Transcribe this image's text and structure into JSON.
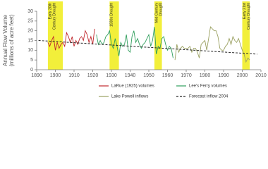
{
  "chart_data": {
    "type": "line",
    "y_label": [
      "Annual Flow Volume",
      "(millions of acre feet)"
    ],
    "xlim": [
      1890,
      2010
    ],
    "xticks": [
      1890,
      1900,
      1910,
      1920,
      1930,
      1940,
      1950,
      1960,
      1970,
      1980,
      1990,
      2000,
      2010
    ],
    "ylim": [
      0,
      30
    ],
    "yticks": [
      0,
      5,
      10,
      15,
      20,
      25,
      30
    ],
    "droughts": [
      {
        "start": 1896,
        "end": 1904,
        "label": [
          "Early 20th",
          "Century Drought"
        ]
      },
      {
        "start": 1929,
        "end": 1934,
        "label": [
          "1930s Drought"
        ]
      },
      {
        "start": 1953,
        "end": 1957,
        "label": [
          "Mid-Century",
          "Drought"
        ]
      },
      {
        "start": 2000,
        "end": 2004,
        "label": [
          "Early 21st",
          "Century Drought"
        ]
      }
    ],
    "drought_color": "#f2ef3a",
    "series": [
      {
        "name": "LaRue (1925) volumes",
        "color": "#c0282d",
        "x": [
          1896,
          1897,
          1898,
          1899,
          1900,
          1901,
          1902,
          1903,
          1904,
          1905,
          1906,
          1907,
          1908,
          1909,
          1910,
          1911,
          1912,
          1913,
          1914,
          1915,
          1916,
          1917,
          1918,
          1919,
          1920,
          1921
        ],
        "values": [
          14,
          12,
          15,
          17,
          10,
          14,
          11,
          13,
          14,
          12,
          19,
          17,
          14,
          17,
          12,
          15,
          13,
          16,
          17,
          15,
          20,
          18,
          14,
          17,
          13,
          21
        ]
      },
      {
        "name": "Lee's Ferry volumes",
        "color": "#2e9e5b",
        "x": [
          1922,
          1923,
          1924,
          1925,
          1926,
          1927,
          1928,
          1929,
          1930,
          1931,
          1932,
          1933,
          1934,
          1935,
          1936,
          1937,
          1938,
          1939,
          1940,
          1941,
          1942,
          1943,
          1944,
          1945,
          1946,
          1947,
          1948,
          1949,
          1950,
          1951,
          1952,
          1953,
          1954,
          1955,
          1956,
          1957,
          1958,
          1959,
          1960,
          1961,
          1962,
          1963
        ],
        "values": [
          18,
          13,
          15,
          13,
          14,
          17,
          18,
          20,
          13,
          11,
          16,
          12,
          7,
          14,
          12,
          13,
          18,
          10,
          9,
          17,
          20,
          14,
          16,
          13,
          11,
          13,
          14,
          16,
          18,
          12,
          15,
          22,
          8,
          12,
          11,
          16,
          17,
          13,
          10,
          12,
          11,
          6
        ]
      },
      {
        "name": "Lake Powell inflows",
        "color": "#9aa060",
        "x": [
          1964,
          1965,
          1966,
          1967,
          1968,
          1969,
          1970,
          1971,
          1972,
          1973,
          1974,
          1975,
          1976,
          1977,
          1978,
          1979,
          1980,
          1981,
          1982,
          1983,
          1984,
          1985,
          1986,
          1987,
          1988,
          1989,
          1990,
          1991,
          1992,
          1993,
          1994,
          1995,
          1996,
          1997,
          1998,
          1999,
          2000,
          2001,
          2002,
          2003,
          2004
        ],
        "values": [
          5,
          13,
          9,
          11,
          12,
          11,
          11,
          11,
          12,
          9,
          11,
          11,
          9,
          6,
          13,
          14,
          15,
          10,
          16,
          22,
          21,
          20,
          20,
          17,
          11,
          10,
          10,
          12,
          13,
          16,
          13,
          17,
          15,
          14,
          16,
          13,
          10,
          8,
          4,
          6,
          5
        ]
      },
      {
        "name": "Forecast inflow 2004",
        "color": "#222222",
        "dashed": true,
        "x": [
          1891,
          2008
        ],
        "values": [
          15,
          8
        ]
      }
    ]
  }
}
